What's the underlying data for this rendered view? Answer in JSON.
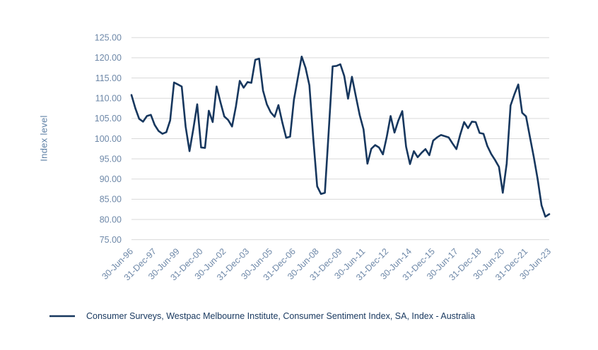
{
  "y_axis_title": "Index level",
  "legend": {
    "label": "Consumer Surveys, Westpac Melbourne Institute, Consumer Sentiment Index, SA, Index - Australia"
  },
  "colors": {
    "line": "#17375e",
    "grid": "#d9d9d9",
    "tick_label": "#6e88a8",
    "axis_title": "#5f81a6",
    "legend_text": "#17375e",
    "background": "#ffffff"
  },
  "chart_data": {
    "type": "line",
    "title": "",
    "xlabel": "",
    "ylabel": "Index level",
    "ylim": [
      75,
      125
    ],
    "ytick_step": 5,
    "y_tick_labels": [
      "125.00",
      "120.00",
      "115.00",
      "110.00",
      "105.00",
      "100.00",
      "95.00",
      "90.00",
      "85.00",
      "80.00",
      "75.00"
    ],
    "grid": "horizontal",
    "legend_position": "bottom-left",
    "frequency": "quarterly",
    "x_tick_every": 6,
    "x_tick_labels": [
      "30-Jun-96",
      "31-Dec-97",
      "30-Jun-99",
      "31-Dec-00",
      "30-Jun-02",
      "31-Dec-03",
      "30-Jun-05",
      "31-Dec-06",
      "30-Jun-08",
      "31-Dec-09",
      "30-Jun-11",
      "31-Dec-12",
      "30-Jun-14",
      "31-Dec-15",
      "30-Jun-17",
      "31-Dec-18",
      "30-Jun-20",
      "31-Dec-21",
      "30-Jun-23"
    ],
    "series": [
      {
        "name": "Consumer Surveys, Westpac Melbourne Institute, Consumer Sentiment Index, SA, Index - Australia",
        "values": [
          110.8,
          107.5,
          104.9,
          104.2,
          105.6,
          105.9,
          103.4,
          101.9,
          101.2,
          101.6,
          104.5,
          113.9,
          113.4,
          112.9,
          103.0,
          96.9,
          102.5,
          108.5,
          97.8,
          97.7,
          106.9,
          104.1,
          112.9,
          109.0,
          105.5,
          104.6,
          103.0,
          108.0,
          114.3,
          112.6,
          114.0,
          113.8,
          119.5,
          119.8,
          111.9,
          108.5,
          106.5,
          105.4,
          108.3,
          104.0,
          100.2,
          100.5,
          109.6,
          115.0,
          120.3,
          117.5,
          113.2,
          100.0,
          88.2,
          86.3,
          86.6,
          102.0,
          117.9,
          118.0,
          118.4,
          115.5,
          109.9,
          115.3,
          110.5,
          105.8,
          102.3,
          93.8,
          97.5,
          98.4,
          97.8,
          96.1,
          100.5,
          105.6,
          101.5,
          104.5,
          106.8,
          98.0,
          93.7,
          96.9,
          95.4,
          96.5,
          97.4,
          95.9,
          99.5,
          100.3,
          100.9,
          100.6,
          100.3,
          98.8,
          97.4,
          101.0,
          104.1,
          102.6,
          104.2,
          104.1,
          101.4,
          101.2,
          98.2,
          96.2,
          94.7,
          93.0,
          86.6,
          93.8,
          108.2,
          111.0,
          113.4,
          106.4,
          105.5,
          100.5,
          95.5,
          90.0,
          83.5,
          80.7,
          81.3
        ]
      }
    ]
  }
}
